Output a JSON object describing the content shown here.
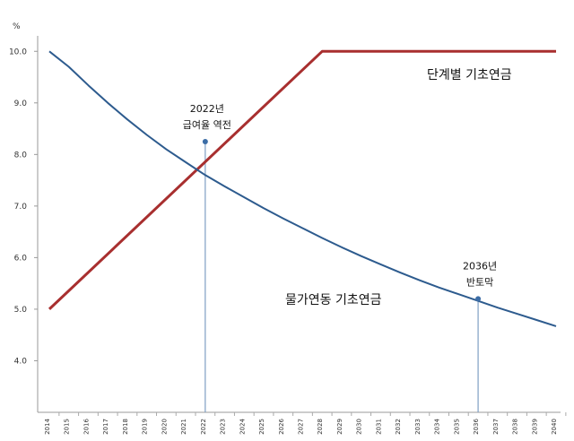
{
  "chart_data": {
    "type": "line",
    "ylabel": "%",
    "ylim": [
      3.0,
      10.3
    ],
    "xlim": [
      2014,
      2040
    ],
    "yticks": [
      4.0,
      5.0,
      6.0,
      7.0,
      8.0,
      9.0,
      10.0
    ],
    "ytick_labels": [
      "4.0",
      "5.0",
      "6.0",
      "7.0",
      "8.0",
      "9.0",
      "10.0"
    ],
    "xticks": [
      "2014",
      "2015",
      "2016",
      "2017",
      "2018",
      "2019",
      "2020",
      "2021",
      "2022",
      "2023",
      "2024",
      "2025",
      "2026",
      "2027",
      "2028",
      "2029",
      "2030",
      "2031",
      "2032",
      "2033",
      "2034",
      "2035",
      "2036",
      "2037",
      "2038",
      "2039",
      "2040"
    ],
    "grid": false,
    "series": [
      {
        "name": "단계별 기초연금",
        "color": "#a82f2f",
        "x": [
          2014,
          2028,
          2040
        ],
        "values": [
          5.0,
          10.0,
          10.0
        ]
      },
      {
        "name": "물가연동 기초연금",
        "color": "#2d5b8e",
        "x": [
          2014,
          2015,
          2016,
          2017,
          2018,
          2019,
          2020,
          2021,
          2022,
          2023,
          2024,
          2025,
          2026,
          2027,
          2028,
          2029,
          2030,
          2031,
          2032,
          2033,
          2034,
          2035,
          2036,
          2037,
          2038,
          2039,
          2040
        ],
        "values": [
          10.0,
          9.7,
          9.34,
          9.0,
          8.68,
          8.38,
          8.1,
          7.85,
          7.6,
          7.38,
          7.17,
          6.96,
          6.76,
          6.57,
          6.38,
          6.2,
          6.03,
          5.87,
          5.71,
          5.56,
          5.42,
          5.29,
          5.16,
          5.03,
          4.91,
          4.79,
          4.67
        ]
      }
    ],
    "annotations": [
      {
        "year_label": "2022년",
        "text": "급여율 역전",
        "x": 2022,
        "y": 8.25
      },
      {
        "year_label": "2036년",
        "text": "반토막",
        "x": 2036,
        "y": 5.2
      }
    ]
  }
}
